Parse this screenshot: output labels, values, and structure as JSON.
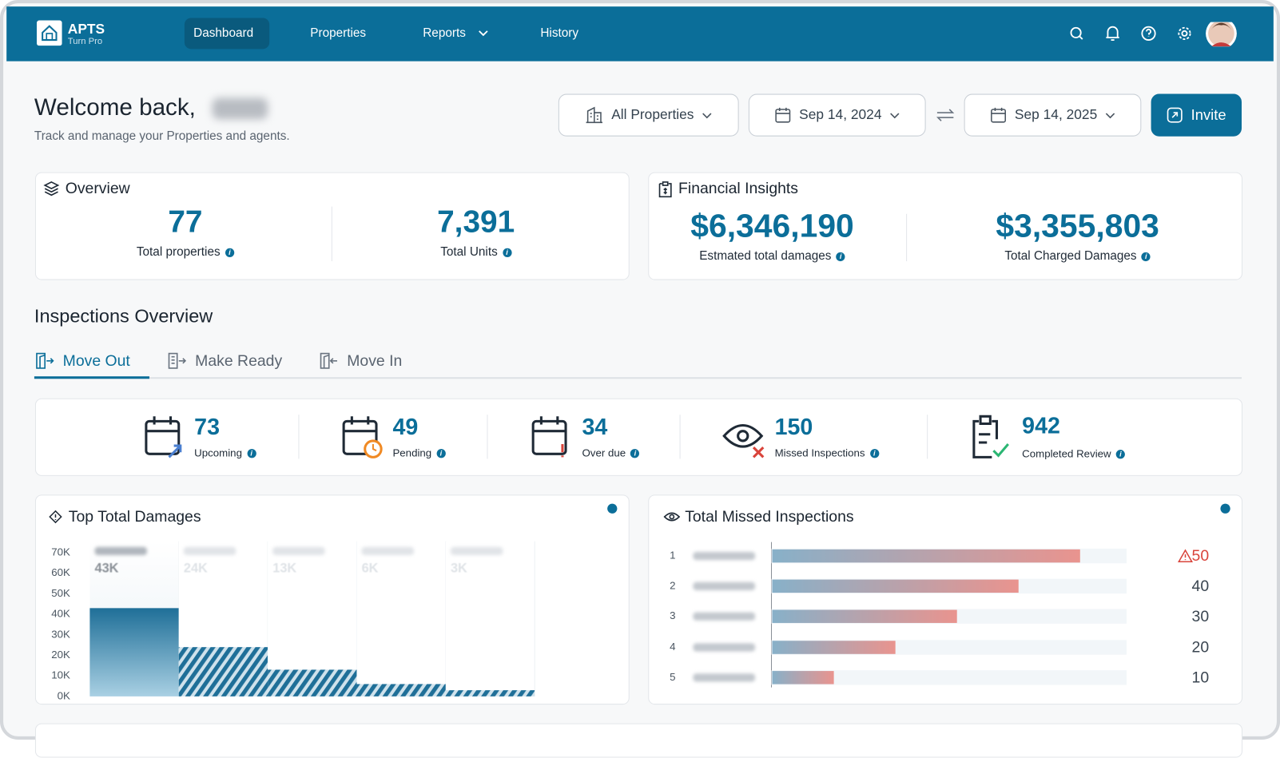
{
  "nav": {
    "brand": "APTS",
    "brand_sub": "Turn Pro",
    "items": [
      "Dashboard",
      "Properties",
      "Reports",
      "History"
    ]
  },
  "header": {
    "greeting": "Welcome back,",
    "subtitle": "Track and manage your Properties and agents.",
    "filter": "All Properties",
    "date_from": "Sep 14, 2024",
    "date_to": "Sep 14, 2025",
    "invite": "Invite"
  },
  "overview": {
    "title": "Overview",
    "stats": [
      {
        "value": "77",
        "label": "Total properties"
      },
      {
        "value": "7,391",
        "label": "Total Units"
      }
    ]
  },
  "financial": {
    "title": "Financial Insights",
    "stats": [
      {
        "value": "$6,346,190",
        "label": "Estmated total damages"
      },
      {
        "value": "$3,355,803",
        "label": "Total Charged Damages"
      }
    ]
  },
  "inspections": {
    "title": "Inspections Overview",
    "tabs": [
      "Move Out",
      "Make Ready",
      "Move In"
    ],
    "stats": [
      {
        "value": "73",
        "label": "Upcoming"
      },
      {
        "value": "49",
        "label": "Pending"
      },
      {
        "value": "34",
        "label": "Over due"
      },
      {
        "value": "150",
        "label": "Missed Inspections"
      },
      {
        "value": "942",
        "label": "Completed Review"
      }
    ]
  },
  "chart_data": [
    {
      "type": "bar",
      "title": "Top Total Damages",
      "categories": [
        null,
        null,
        null,
        null,
        null
      ],
      "values": [
        43000,
        24000,
        13000,
        6000,
        3000
      ],
      "value_labels": [
        "43K",
        "24K",
        "13K",
        "6K",
        "3K"
      ],
      "color": "#1f6f98",
      "ylim": [
        0,
        70000
      ],
      "yticks": [
        {
          "value": 0,
          "label": "0K"
        },
        {
          "value": 10000,
          "label": "10K"
        },
        {
          "value": 20000,
          "label": "20K"
        },
        {
          "value": 30000,
          "label": "30K"
        },
        {
          "value": 40000,
          "label": "40K"
        },
        {
          "value": 50000,
          "label": "50K"
        },
        {
          "value": 60000,
          "label": "60K"
        },
        {
          "value": 70000,
          "label": "70K"
        }
      ]
    },
    {
      "type": "hbar",
      "title": "Total Missed Inspections",
      "categories": [
        "1",
        "2",
        "3",
        "4",
        "5"
      ],
      "values": [
        50,
        40,
        30,
        20,
        10
      ],
      "colors": [
        "#2f76a0",
        "#d9443b"
      ]
    }
  ]
}
